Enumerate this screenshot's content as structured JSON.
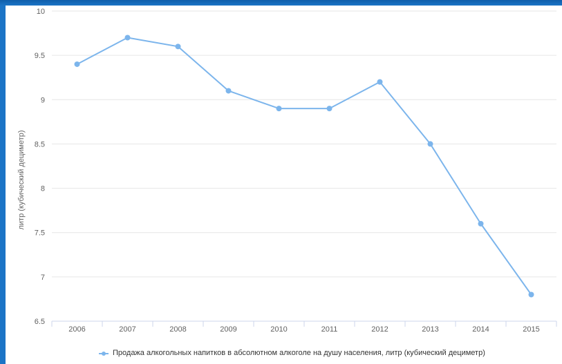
{
  "chart_data": {
    "type": "line",
    "x": [
      "2006",
      "2007",
      "2008",
      "2009",
      "2010",
      "2011",
      "2012",
      "2013",
      "2014",
      "2015"
    ],
    "series": [
      {
        "name": "Продажа алкогольных напитков в абсолютном алкоголе на душу населения, литр (кубический дециметр)",
        "values": [
          9.4,
          9.7,
          9.6,
          9.1,
          8.9,
          8.9,
          9.2,
          8.5,
          7.6,
          6.8
        ]
      }
    ],
    "ylabel": "литр (кубический дециметр)",
    "ylim": [
      6.5,
      10
    ],
    "yticks": [
      "6.5",
      "7",
      "7.5",
      "8",
      "8.5",
      "9",
      "9.5",
      "10"
    ],
    "grid": true,
    "legend_position": "bottom-left",
    "series_color": "#7cb5ec"
  }
}
